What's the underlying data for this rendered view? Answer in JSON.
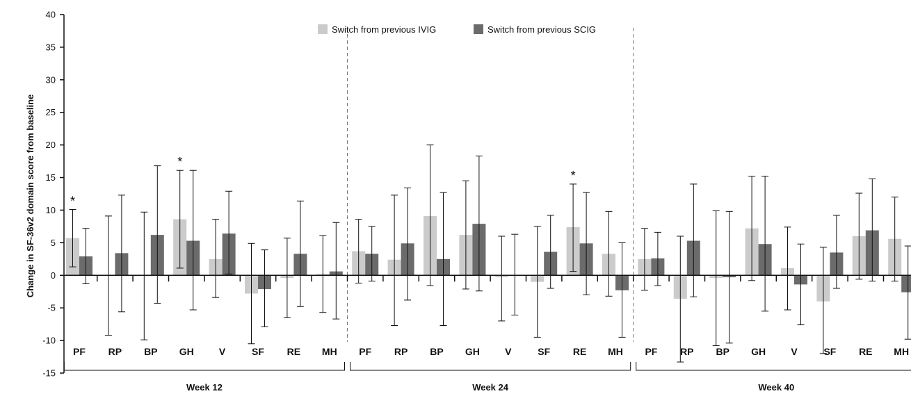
{
  "chart_data": {
    "type": "bar",
    "ylabel": "Change in SF-36v2 domain score from baseline",
    "ylim": [
      -15,
      40
    ],
    "yticks": [
      -15,
      -10,
      -5,
      0,
      5,
      10,
      15,
      20,
      25,
      30,
      35,
      40
    ],
    "ytick_labels": [
      "-15",
      "-10",
      "-5",
      "0",
      "5",
      "10",
      "15",
      "20",
      "25",
      "30",
      "35",
      "40"
    ],
    "legend_position": "top-center",
    "domains": [
      "PF",
      "RP",
      "BP",
      "GH",
      "V",
      "SF",
      "RE",
      "MH"
    ],
    "series": [
      {
        "name": "Switch from previous IVIG",
        "color": "#cbcbcb"
      },
      {
        "name": "Switch from previous SCIG",
        "color": "#6b6b6b"
      }
    ],
    "groups": [
      {
        "label": "Week 12",
        "ivig": {
          "values": [
            5.7,
            0.0,
            0.0,
            8.6,
            2.5,
            -2.8,
            -0.4,
            0.2
          ],
          "lower": [
            1.3,
            -9.2,
            -9.9,
            1.1,
            -3.4,
            -10.5,
            -6.5,
            -5.7
          ],
          "upper": [
            10.1,
            9.1,
            9.7,
            16.1,
            8.6,
            4.9,
            5.7,
            6.1
          ]
        },
        "scig": {
          "values": [
            2.9,
            3.4,
            6.2,
            5.3,
            6.4,
            -2.1,
            3.3,
            0.6
          ],
          "lower": [
            -1.3,
            -5.6,
            -4.3,
            -5.3,
            0.2,
            -7.9,
            -4.8,
            -6.7
          ],
          "upper": [
            7.2,
            12.3,
            16.8,
            16.1,
            12.9,
            3.9,
            11.4,
            8.1
          ]
        },
        "significant": [
          "PF",
          "GH"
        ]
      },
      {
        "label": "Week 24",
        "ivig": {
          "values": [
            3.7,
            2.4,
            9.1,
            6.2,
            -0.3,
            -1.0,
            7.4,
            3.3
          ],
          "lower": [
            -1.2,
            -7.7,
            -1.6,
            -2.1,
            -7.0,
            -9.5,
            0.6,
            -3.2
          ],
          "upper": [
            8.6,
            12.3,
            20.0,
            14.5,
            6.0,
            7.5,
            14.0,
            9.8
          ]
        },
        "scig": {
          "values": [
            3.3,
            4.9,
            2.5,
            7.9,
            0.0,
            3.6,
            4.9,
            -2.3
          ],
          "lower": [
            -0.9,
            -3.8,
            -7.7,
            -2.4,
            -6.1,
            -2.0,
            -3.0,
            -9.5
          ],
          "upper": [
            7.5,
            13.4,
            12.7,
            18.3,
            6.3,
            9.2,
            12.7,
            5.0
          ]
        },
        "significant": [
          "RE"
        ]
      },
      {
        "label": "Week 40",
        "ivig": {
          "values": [
            2.5,
            -3.6,
            -0.4,
            7.2,
            1.1,
            -4.0,
            6.0,
            5.6
          ],
          "lower": [
            -2.3,
            -13.3,
            -10.8,
            -0.8,
            -5.3,
            -12.0,
            -0.6,
            -0.9
          ],
          "upper": [
            7.2,
            6.0,
            9.9,
            15.2,
            7.4,
            4.3,
            12.6,
            12.0
          ]
        },
        "scig": {
          "values": [
            2.6,
            5.3,
            -0.3,
            4.8,
            -1.4,
            3.5,
            6.9,
            -2.6
          ],
          "lower": [
            -1.6,
            -3.3,
            -10.4,
            -5.5,
            -7.6,
            -2.0,
            -0.9,
            -9.8
          ],
          "upper": [
            6.6,
            14.0,
            9.8,
            15.2,
            4.8,
            9.2,
            14.8,
            4.5
          ]
        },
        "significant": []
      }
    ],
    "significance_marker": "*"
  }
}
